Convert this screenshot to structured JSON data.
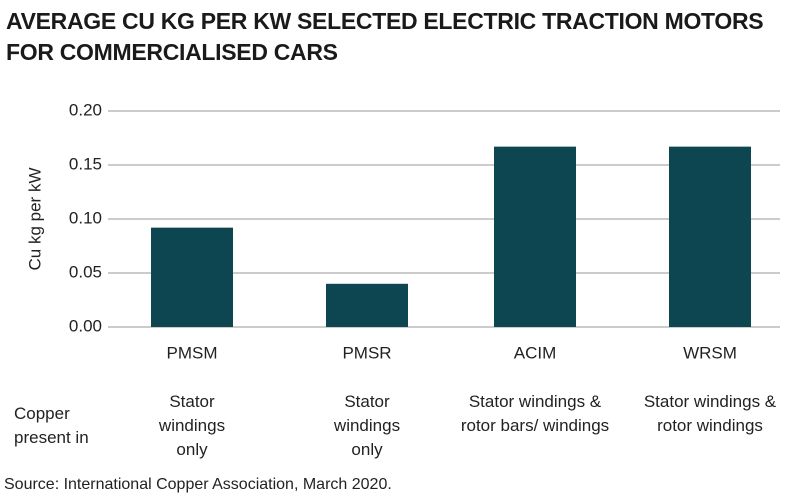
{
  "chart_data": {
    "type": "bar",
    "title": "AVERAGE CU KG PER KW SELECTED ELECTRIC TRACTION MOTORS FOR COMMERCIALISED CARS",
    "y_label": "Cu kg per kW",
    "categories": [
      "PMSM",
      "PMSR",
      "ACIM",
      "WRSM"
    ],
    "values": [
      0.092,
      0.04,
      0.167,
      0.167
    ],
    "color": "#0d4650",
    "ylim": [
      0,
      0.2
    ],
    "yticks": [
      {
        "value": 0,
        "label": "0.00"
      },
      0.05,
      {
        "value": 0.1,
        "label": "0.10"
      },
      0.15,
      {
        "value": 0.2,
        "label": "0.20"
      }
    ],
    "grid": true,
    "row_label": "Copper present in",
    "category_notes": [
      "Stator windings only",
      "Stator windings only",
      "Stator windings & rotor bars/ windings",
      "Stator windings & rotor windings"
    ],
    "source": "Source: International Copper Association, March 2020."
  }
}
